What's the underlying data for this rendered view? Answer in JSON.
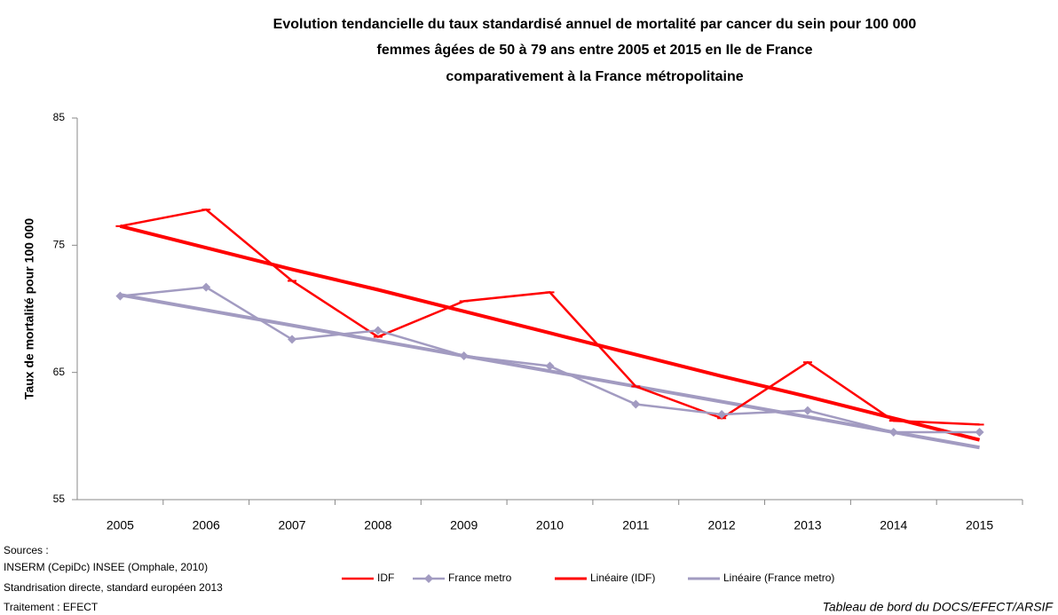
{
  "chart_data": {
    "type": "line",
    "title": [
      "Evolution tendancielle du taux standardisé annuel de mortalité par cancer du sein pour 100 000",
      "femmes âgées de 50 à 79 ans entre 2005 et 2015 en Ile de France",
      "comparativement à la France métropolitaine"
    ],
    "y_label": "Taux de mortalité pour 100 000",
    "categories": [
      "2005",
      "2006",
      "2007",
      "2008",
      "2009",
      "2010",
      "2011",
      "2012",
      "2013",
      "2014",
      "2015"
    ],
    "series": [
      {
        "name": "IDF",
        "color": "#ff0000",
        "marker": "dash",
        "values": [
          76.5,
          77.8,
          72.2,
          67.8,
          70.6,
          71.3,
          63.9,
          61.4,
          65.8,
          61.2,
          60.9
        ]
      },
      {
        "name": "France metro",
        "color": "#a29bc1",
        "marker": "diamond",
        "values": [
          71.0,
          71.7,
          67.6,
          68.3,
          66.3,
          65.5,
          62.5,
          61.7,
          62.0,
          60.3,
          60.3
        ]
      },
      {
        "name": "Linéaire (IDF)",
        "color": "#ff0000",
        "marker": "none",
        "values": [
          76.5,
          74.8,
          73.1,
          71.5,
          69.8,
          68.1,
          66.4,
          64.7,
          63.1,
          61.4,
          59.7
        ]
      },
      {
        "name": "Linéaire (France metro)",
        "color": "#a29bc1",
        "marker": "none",
        "values": [
          71.1,
          69.9,
          68.7,
          67.5,
          66.3,
          65.1,
          63.9,
          62.7,
          61.5,
          60.3,
          59.1
        ]
      }
    ],
    "ylim": [
      55,
      85
    ],
    "yticks": [
      55,
      65,
      75,
      85
    ],
    "grid": false,
    "legend": "bottom",
    "sources": [
      "Sources :",
      "INSERM (CepiDc) INSEE (Omphale, 2010)",
      "Standrisation directe, standard européen 2013",
      "Traitement : EFECT"
    ],
    "credit": "Tableau de bord du DOCS/EFECT/ARSIF"
  }
}
